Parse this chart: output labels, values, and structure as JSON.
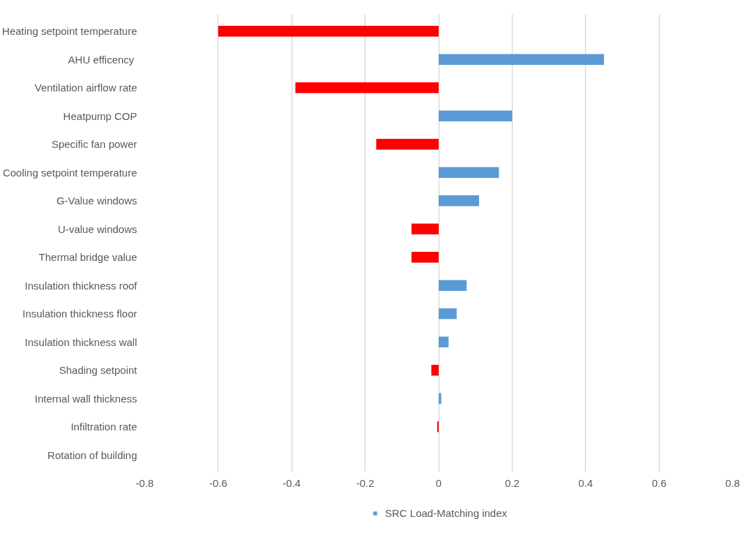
{
  "chart_data": {
    "type": "bar",
    "orientation": "horizontal",
    "categories": [
      "Heating setpoint temperature",
      "AHU efficency ",
      "Ventilation airflow rate",
      "Heatpump COP",
      "Specific fan power",
      "Cooling setpoint temperature",
      "G-Value windows",
      "U-value windows",
      "Thermal bridge value",
      "Insulation thickness roof",
      "Insulation thickness floor",
      "Insulation thickness wall",
      "Shading setpoint",
      "Internal wall thickness",
      "Infiltration rate",
      "Rotation of building"
    ],
    "series": [
      {
        "name": "SRC Load-Matching index",
        "color": "#5b9bd5",
        "values": [
          -0.6,
          0.45,
          -0.39,
          0.2,
          -0.17,
          0.164,
          0.11,
          -0.074,
          -0.074,
          0.076,
          0.049,
          0.027,
          -0.02,
          0.007,
          -0.004,
          0
        ],
        "colors": [
          "#ff0000",
          "#5b9bd5",
          "#ff0000",
          "#5b9bd5",
          "#ff0000",
          "#5b9bd5",
          "#5b9bd5",
          "#ff0000",
          "#ff0000",
          "#5b9bd5",
          "#5b9bd5",
          "#5b9bd5",
          "#ff0000",
          "#5b9bd5",
          "#ff0000",
          "#5b9bd5"
        ]
      }
    ],
    "xlim": [
      -0.8,
      0.8
    ],
    "xticks": [
      -0.8,
      -0.6,
      -0.4,
      -0.2,
      0,
      0.2,
      0.4,
      0.6,
      0.8
    ],
    "grid": "x",
    "legend": "bottom"
  }
}
